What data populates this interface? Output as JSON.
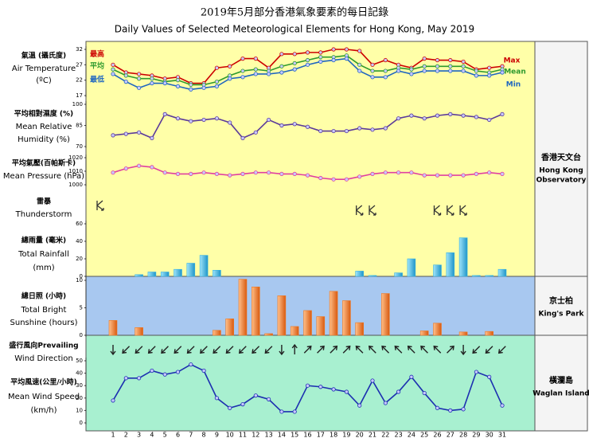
{
  "title": "2019年5月部分香港氣象要素的每日記錄",
  "subtitle": "Daily Values of Selected Meteorological Elements for Hong Kong, May 2019",
  "days": [
    1,
    2,
    3,
    4,
    5,
    6,
    7,
    8,
    9,
    10,
    11,
    12,
    13,
    14,
    15,
    16,
    17,
    18,
    19,
    20,
    21,
    22,
    23,
    24,
    25,
    26,
    27,
    28,
    29,
    30,
    31
  ],
  "chart_data": [
    {
      "type": "line",
      "label": [
        "氣溫 (攝氏度)",
        "Air Temperature",
        "(ºC)"
      ],
      "ylim": [
        17,
        32
      ],
      "yticks": [
        17,
        22,
        27,
        32
      ],
      "series": [
        {
          "name": "Max",
          "name_zh": "最高",
          "color": "#cc0000",
          "values": [
            27,
            24.5,
            24,
            23.5,
            22.5,
            23,
            21,
            21,
            26,
            26.5,
            29,
            29,
            26,
            30.5,
            30.5,
            31,
            31,
            32,
            32,
            31.5,
            27,
            28.5,
            27,
            26,
            29,
            28.5,
            28.5,
            28,
            25.5,
            26,
            26.5
          ]
        },
        {
          "name": "Mean",
          "name_zh": "平均",
          "color": "#2e9a2e",
          "values": [
            25.5,
            23.5,
            22.5,
            22.5,
            21.5,
            22,
            20.5,
            20.5,
            21.5,
            23.5,
            25,
            25.5,
            25,
            26.5,
            27.5,
            28.5,
            29.5,
            29.5,
            30,
            27,
            25,
            25,
            26,
            25.5,
            26.5,
            26.5,
            26.5,
            26.5,
            25,
            24.5,
            25.5
          ]
        },
        {
          "name": "Min",
          "name_zh": "最低",
          "color": "#1f66c0",
          "values": [
            24,
            21.5,
            19.5,
            21,
            21,
            20,
            19,
            19.5,
            20,
            22.5,
            23,
            24,
            24,
            24.5,
            25.5,
            27,
            28,
            28.5,
            29,
            25,
            23,
            23,
            25,
            24,
            25,
            25,
            25,
            25,
            23.5,
            23.5,
            24.5
          ]
        }
      ]
    },
    {
      "type": "line",
      "label": [
        "平均相對濕度 (%)",
        "Mean Relative",
        "Humidity  (%)"
      ],
      "ylim": [
        70,
        100
      ],
      "yticks": [
        70,
        85,
        100
      ],
      "series": [
        {
          "color": "#5b3a9a",
          "values": [
            78,
            79,
            80,
            76,
            93,
            90,
            88,
            89,
            90,
            87,
            76,
            80,
            89,
            85,
            86,
            84,
            81,
            81,
            81,
            83,
            82,
            83,
            90,
            92,
            90,
            92,
            93,
            92,
            91,
            89,
            93
          ]
        }
      ]
    },
    {
      "type": "line",
      "label": [
        "平均氣壓(百帕斯卡)",
        "Mean Pressure (hPa)"
      ],
      "ylim": [
        1000,
        1020
      ],
      "yticks": [
        1000,
        1010,
        1020
      ],
      "series": [
        {
          "color": "#e040a0",
          "values": [
            1009,
            1012,
            1014,
            1013,
            1009,
            1008,
            1008,
            1009,
            1008,
            1007,
            1008,
            1009,
            1009,
            1008,
            1008,
            1007,
            1005,
            1004,
            1004,
            1006,
            1008,
            1009,
            1009,
            1009,
            1007,
            1007,
            1007,
            1007,
            1008,
            1009,
            1008
          ]
        }
      ]
    },
    {
      "type": "event",
      "label": [
        "雷暴",
        "Thunderstorm"
      ],
      "days": [
        20,
        21,
        26,
        27,
        28
      ]
    },
    {
      "type": "bar",
      "label": [
        "總雨量 (毫米)",
        "Total Rainfall",
        "(mm)"
      ],
      "ylim": [
        0,
        60
      ],
      "yticks": [
        0,
        20,
        40,
        60
      ],
      "color": "#39b4e4",
      "values": [
        0,
        0,
        2,
        5,
        5,
        8,
        15,
        24,
        7,
        0,
        0,
        0,
        0,
        0,
        0,
        0,
        0,
        0,
        0,
        6,
        1,
        0,
        4,
        20,
        0,
        13,
        27,
        44,
        1,
        1,
        8
      ]
    },
    {
      "type": "bar",
      "label": [
        "總日照 (小時)",
        "Total Bright",
        "Sunshine  (hours)"
      ],
      "ylim": [
        0,
        10
      ],
      "yticks": [
        0,
        5,
        10
      ],
      "color": "#f07820",
      "values": [
        2.7,
        0,
        1.4,
        0,
        0,
        0,
        0,
        0,
        0.9,
        3,
        10.2,
        8.8,
        0.3,
        7.2,
        1.6,
        4.5,
        3.4,
        8,
        6.3,
        2.3,
        0,
        7.6,
        0,
        0,
        0.8,
        2.2,
        0,
        0.6,
        0,
        0.7,
        0
      ]
    },
    {
      "type": "arrow",
      "label": [
        "盛行風向Prevailing",
        "Wind Direction"
      ],
      "values": [
        360,
        45,
        45,
        45,
        45,
        45,
        45,
        45,
        45,
        45,
        45,
        45,
        45,
        360,
        180,
        225,
        225,
        225,
        225,
        135,
        135,
        135,
        135,
        135,
        135,
        135,
        225,
        360,
        45,
        45,
        45
      ]
    },
    {
      "type": "line",
      "label": [
        "平均風速(公里/小時)",
        "Mean Wind Speed",
        "(km/h)"
      ],
      "ylim": [
        0,
        50
      ],
      "yticks": [
        0,
        10,
        20,
        30,
        40,
        50
      ],
      "series": [
        {
          "color": "#1c2fb0",
          "values": [
            18,
            36,
            36,
            42,
            39,
            41,
            47,
            42,
            20,
            12,
            15,
            22,
            19,
            9,
            9,
            30,
            29,
            27,
            25,
            14,
            34,
            16,
            25,
            37,
            24,
            12,
            10,
            11,
            41,
            37,
            14
          ]
        }
      ]
    }
  ],
  "stations": [
    {
      "zh": "香港天文台",
      "en": [
        "Hong Kong",
        "Observatory"
      ]
    },
    {
      "zh": "京士柏",
      "en": [
        "King's Park"
      ]
    },
    {
      "zh": "橫瀾島",
      "en": [
        "Waglan Island"
      ]
    }
  ]
}
